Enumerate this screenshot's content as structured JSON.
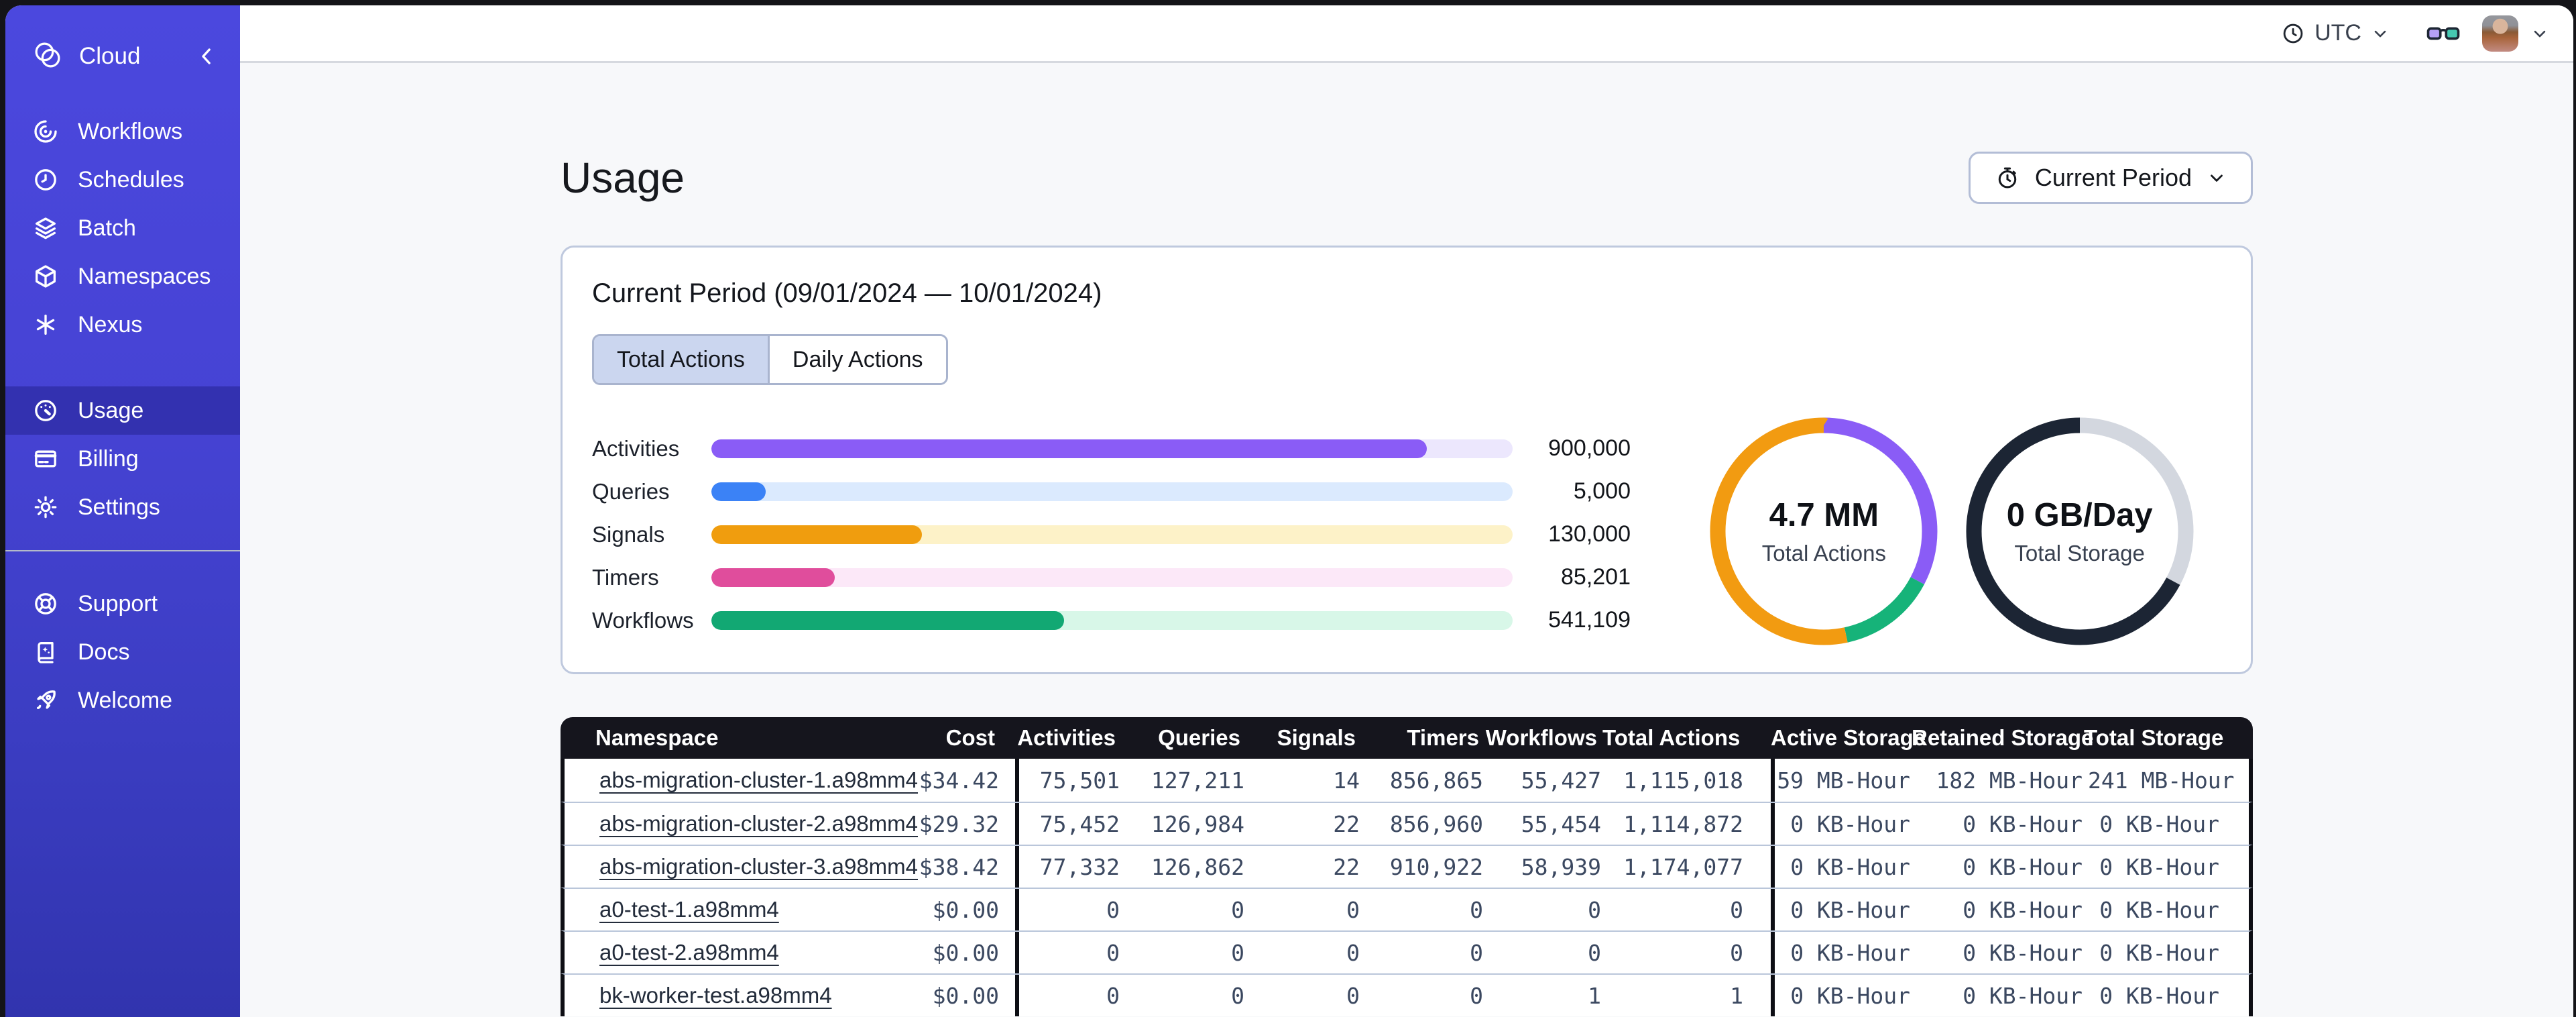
{
  "sidebar": {
    "brand": {
      "label": "Cloud"
    },
    "nav_main": [
      {
        "label": "Workflows",
        "icon": "workflows-icon"
      },
      {
        "label": "Schedules",
        "icon": "schedules-icon"
      },
      {
        "label": "Batch",
        "icon": "batch-icon"
      },
      {
        "label": "Namespaces",
        "icon": "namespaces-icon"
      },
      {
        "label": "Nexus",
        "icon": "nexus-icon"
      }
    ],
    "nav_account": [
      {
        "label": "Usage",
        "icon": "usage-icon",
        "active": true
      },
      {
        "label": "Billing",
        "icon": "billing-icon",
        "active": false
      },
      {
        "label": "Settings",
        "icon": "settings-icon",
        "active": false
      }
    ],
    "nav_footer": [
      {
        "label": "Support",
        "icon": "support-icon"
      },
      {
        "label": "Docs",
        "icon": "docs-icon"
      },
      {
        "label": "Welcome",
        "icon": "welcome-icon"
      }
    ]
  },
  "topbar": {
    "timezone": "UTC"
  },
  "page": {
    "title": "Usage",
    "period_selector_label": "Current Period"
  },
  "usage_card": {
    "title": "Current Period (09/01/2024 — 10/01/2024)",
    "tabs": [
      {
        "label": "Total Actions",
        "active": true
      },
      {
        "label": "Daily Actions",
        "active": false
      }
    ]
  },
  "chart_data": [
    {
      "type": "bar",
      "orientation": "horizontal",
      "items": [
        {
          "label": "Activities",
          "value": 900000,
          "value_label": "900,000",
          "width_pct": "89.3%",
          "color": "#8a5cf6",
          "track_color": "#ece7fd"
        },
        {
          "label": "Queries",
          "value": 5000,
          "value_label": "5,000",
          "width_pct": "6.8%",
          "color": "#3b82f6",
          "track_color": "#dbeafe"
        },
        {
          "label": "Signals",
          "value": 130000,
          "value_label": "130,000",
          "width_pct": "26.3%",
          "color": "#f09d0e",
          "track_color": "#fdf2c8"
        },
        {
          "label": "Timers",
          "value": 85201,
          "value_label": "85,201",
          "width_pct": "15.4%",
          "color": "#e04d9c",
          "track_color": "#fce8f8"
        },
        {
          "label": "Workflows",
          "value": 541109,
          "value_label": "541,109",
          "width_pct": "44.0%",
          "color": "#12a873",
          "track_color": "#d8f7e8"
        }
      ]
    },
    {
      "type": "pie",
      "variant": "donut",
      "center_value": "4.7 MM",
      "center_label": "Total Actions",
      "segments": [
        {
          "color": "#8a5cf6",
          "fraction": 0.327
        },
        {
          "color": "#16b379",
          "fraction": 0.139
        },
        {
          "color": "#f29b11",
          "fraction": 0.534
        }
      ]
    },
    {
      "type": "pie",
      "variant": "donut",
      "center_value": "0 GB/Day",
      "center_label": "Total Storage",
      "segments": [
        {
          "color": "#d3d7df",
          "fraction": 0.328
        },
        {
          "color": "#1c2534",
          "fraction": 0.672
        }
      ]
    }
  ],
  "table": {
    "columns": [
      "Namespace",
      "Cost",
      "Activities",
      "Queries",
      "Signals",
      "Timers",
      "Workflows",
      "Total Actions",
      "Active Storage",
      "Retained Storage",
      "Total Storage"
    ],
    "rows": [
      {
        "namespace": "abs-migration-cluster-1.a98mm4",
        "cost": "$34.42",
        "activities": "75,501",
        "queries": "127,211",
        "signals": "14",
        "timers": "856,865",
        "workflows": "55,427",
        "total_actions": "1,115,018",
        "active_storage": "59 MB-Hour",
        "retained_storage": "182 MB-Hour",
        "total_storage": "241 MB-Hour"
      },
      {
        "namespace": "abs-migration-cluster-2.a98mm4",
        "cost": "$29.32",
        "activities": "75,452",
        "queries": "126,984",
        "signals": "22",
        "timers": "856,960",
        "workflows": "55,454",
        "total_actions": "1,114,872",
        "active_storage": "0 KB-Hour",
        "retained_storage": "0 KB-Hour",
        "total_storage": "0 KB-Hour"
      },
      {
        "namespace": "abs-migration-cluster-3.a98mm4",
        "cost": "$38.42",
        "activities": "77,332",
        "queries": "126,862",
        "signals": "22",
        "timers": "910,922",
        "workflows": "58,939",
        "total_actions": "1,174,077",
        "active_storage": "0 KB-Hour",
        "retained_storage": "0 KB-Hour",
        "total_storage": "0 KB-Hour"
      },
      {
        "namespace": "a0-test-1.a98mm4",
        "cost": "$0.00",
        "activities": "0",
        "queries": "0",
        "signals": "0",
        "timers": "0",
        "workflows": "0",
        "total_actions": "0",
        "active_storage": "0 KB-Hour",
        "retained_storage": "0 KB-Hour",
        "total_storage": "0 KB-Hour"
      },
      {
        "namespace": "a0-test-2.a98mm4",
        "cost": "$0.00",
        "activities": "0",
        "queries": "0",
        "signals": "0",
        "timers": "0",
        "workflows": "0",
        "total_actions": "0",
        "active_storage": "0 KB-Hour",
        "retained_storage": "0 KB-Hour",
        "total_storage": "0 KB-Hour"
      },
      {
        "namespace": "bk-worker-test.a98mm4",
        "cost": "$0.00",
        "activities": "0",
        "queries": "0",
        "signals": "0",
        "timers": "0",
        "workflows": "1",
        "total_actions": "1",
        "active_storage": "0 KB-Hour",
        "retained_storage": "0 KB-Hour",
        "total_storage": "0 KB-Hour"
      }
    ]
  }
}
